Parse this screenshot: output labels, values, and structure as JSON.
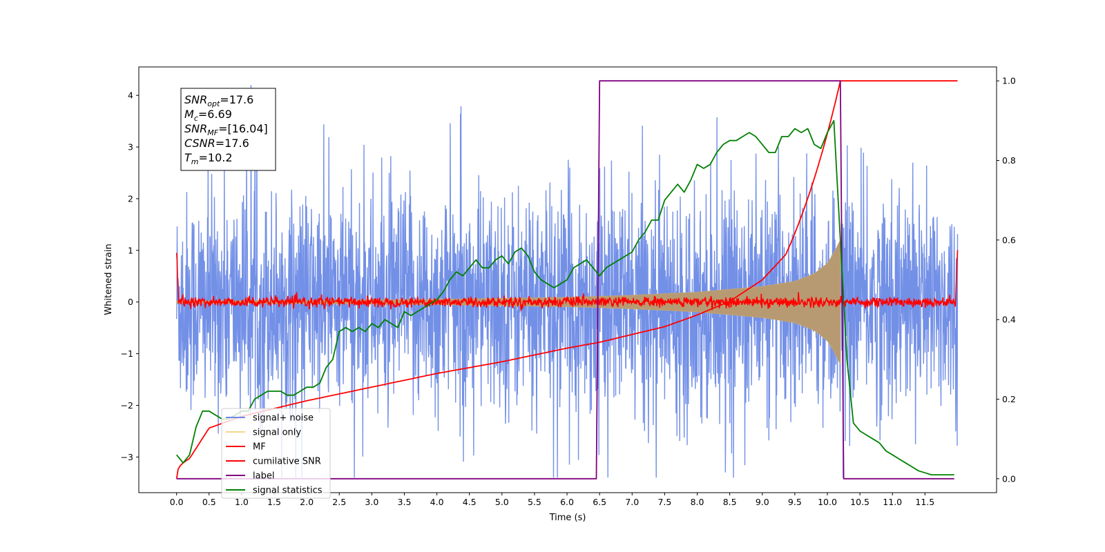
{
  "chart_data": {
    "type": "line",
    "xlabel": "Time (s)",
    "ylabel": "Whitened strain",
    "x_ticks": [
      "0.0",
      "0.5",
      "1.0",
      "1.5",
      "2.0",
      "2.5",
      "3.0",
      "3.5",
      "4.0",
      "4.5",
      "5.0",
      "5.5",
      "6.0",
      "6.5",
      "7.0",
      "7.5",
      "8.0",
      "8.5",
      "9.0",
      "9.5",
      "10.0",
      "10.5",
      "11.0",
      "11.5"
    ],
    "y_left_ticks": [
      "4",
      "3",
      "2",
      "1",
      "0",
      "−1",
      "−2",
      "−3"
    ],
    "y_right_ticks": [
      "1.0",
      "0.8",
      "0.6",
      "0.4",
      "0.2",
      "0.0"
    ],
    "xlim": [
      -0.58,
      12.6
    ],
    "ylim_left": [
      -3.69,
      4.55
    ],
    "ylim_right": [
      -0.035,
      1.035
    ],
    "annotation": [
      {
        "name": "SNR",
        "sub": "opt",
        "value": "=17.6"
      },
      {
        "name": "M",
        "sub": "c",
        "value": "=6.69"
      },
      {
        "name": "SNR",
        "sub": "MF",
        "value": "=[16.04]"
      },
      {
        "name": "CSNR",
        "sub": "",
        "value": "=17.6"
      },
      {
        "name": "T",
        "sub": "m",
        "value": "=10.2"
      }
    ],
    "series": [
      {
        "name": "signal+ noise",
        "color": "#6b8ae6",
        "axis": "left",
        "noise_range": [
          -3.4,
          4.2
        ],
        "typical_abs": 2.4
      },
      {
        "name": "signal only",
        "color": "#f5c45a",
        "axis": "left",
        "envelope_points": [
          [
            0.0,
            0.02
          ],
          [
            2.0,
            0.03
          ],
          [
            4.0,
            0.05
          ],
          [
            6.0,
            0.09
          ],
          [
            7.0,
            0.13
          ],
          [
            8.0,
            0.19
          ],
          [
            9.0,
            0.3
          ],
          [
            9.5,
            0.4
          ],
          [
            9.8,
            0.55
          ],
          [
            10.0,
            0.75
          ],
          [
            10.1,
            0.95
          ],
          [
            10.2,
            1.2
          ]
        ]
      },
      {
        "name": "MF",
        "color": "#ff0000",
        "axis": "left",
        "noise_std": 0.05,
        "edge_value": 1.0
      },
      {
        "name": "cumilative SNR",
        "color": "#ff0000",
        "axis": "right",
        "points": [
          [
            0.0,
            0.0
          ],
          [
            0.5,
            0.13
          ],
          [
            1.0,
            0.16
          ],
          [
            2.0,
            0.2
          ],
          [
            3.0,
            0.235
          ],
          [
            4.0,
            0.27
          ],
          [
            5.0,
            0.3
          ],
          [
            6.0,
            0.335
          ],
          [
            6.5,
            0.35
          ],
          [
            7.0,
            0.37
          ],
          [
            7.5,
            0.39
          ],
          [
            8.0,
            0.42
          ],
          [
            8.5,
            0.455
          ],
          [
            9.0,
            0.51
          ],
          [
            9.5,
            0.6
          ],
          [
            9.8,
            0.7
          ],
          [
            10.0,
            0.8
          ],
          [
            10.1,
            0.88
          ],
          [
            10.2,
            1.0
          ],
          [
            12.0,
            1.0
          ]
        ]
      },
      {
        "name": "label",
        "color": "#800080",
        "axis": "right",
        "points": [
          [
            0.0,
            0.0
          ],
          [
            6.45,
            0.0
          ],
          [
            6.5,
            1.0
          ],
          [
            10.2,
            1.0
          ],
          [
            10.25,
            0.0
          ],
          [
            11.95,
            0.0
          ]
        ]
      },
      {
        "name": "signal statistics",
        "color": "#008000",
        "axis": "right",
        "points": [
          [
            0.0,
            0.06
          ],
          [
            0.1,
            0.04
          ],
          [
            0.2,
            0.06
          ],
          [
            0.3,
            0.13
          ],
          [
            0.4,
            0.17
          ],
          [
            0.5,
            0.17
          ],
          [
            0.6,
            0.16
          ],
          [
            0.7,
            0.15
          ],
          [
            0.8,
            0.15
          ],
          [
            0.9,
            0.16
          ],
          [
            1.0,
            0.17
          ],
          [
            1.1,
            0.17
          ],
          [
            1.2,
            0.2
          ],
          [
            1.3,
            0.21
          ],
          [
            1.4,
            0.22
          ],
          [
            1.5,
            0.22
          ],
          [
            1.6,
            0.22
          ],
          [
            1.7,
            0.21
          ],
          [
            1.8,
            0.21
          ],
          [
            1.9,
            0.22
          ],
          [
            2.0,
            0.23
          ],
          [
            2.1,
            0.23
          ],
          [
            2.2,
            0.24
          ],
          [
            2.3,
            0.28
          ],
          [
            2.4,
            0.3
          ],
          [
            2.5,
            0.37
          ],
          [
            2.6,
            0.38
          ],
          [
            2.7,
            0.37
          ],
          [
            2.8,
            0.38
          ],
          [
            2.9,
            0.37
          ],
          [
            3.0,
            0.39
          ],
          [
            3.1,
            0.38
          ],
          [
            3.2,
            0.4
          ],
          [
            3.3,
            0.39
          ],
          [
            3.4,
            0.38
          ],
          [
            3.5,
            0.42
          ],
          [
            3.6,
            0.41
          ],
          [
            3.7,
            0.42
          ],
          [
            3.8,
            0.43
          ],
          [
            3.9,
            0.44
          ],
          [
            4.0,
            0.45
          ],
          [
            4.1,
            0.47
          ],
          [
            4.2,
            0.5
          ],
          [
            4.3,
            0.52
          ],
          [
            4.4,
            0.51
          ],
          [
            4.5,
            0.53
          ],
          [
            4.6,
            0.55
          ],
          [
            4.7,
            0.53
          ],
          [
            4.8,
            0.53
          ],
          [
            4.9,
            0.55
          ],
          [
            5.0,
            0.56
          ],
          [
            5.1,
            0.54
          ],
          [
            5.2,
            0.57
          ],
          [
            5.3,
            0.58
          ],
          [
            5.4,
            0.56
          ],
          [
            5.5,
            0.52
          ],
          [
            5.6,
            0.5
          ],
          [
            5.7,
            0.49
          ],
          [
            5.8,
            0.48
          ],
          [
            5.9,
            0.49
          ],
          [
            6.0,
            0.5
          ],
          [
            6.1,
            0.53
          ],
          [
            6.2,
            0.54
          ],
          [
            6.3,
            0.55
          ],
          [
            6.4,
            0.53
          ],
          [
            6.5,
            0.51
          ],
          [
            6.6,
            0.53
          ],
          [
            6.7,
            0.54
          ],
          [
            6.8,
            0.55
          ],
          [
            6.9,
            0.56
          ],
          [
            7.0,
            0.57
          ],
          [
            7.1,
            0.6
          ],
          [
            7.2,
            0.62
          ],
          [
            7.3,
            0.65
          ],
          [
            7.4,
            0.65
          ],
          [
            7.5,
            0.7
          ],
          [
            7.6,
            0.72
          ],
          [
            7.7,
            0.74
          ],
          [
            7.8,
            0.72
          ],
          [
            7.9,
            0.75
          ],
          [
            8.0,
            0.79
          ],
          [
            8.1,
            0.78
          ],
          [
            8.2,
            0.79
          ],
          [
            8.3,
            0.82
          ],
          [
            8.4,
            0.84
          ],
          [
            8.5,
            0.85
          ],
          [
            8.6,
            0.85
          ],
          [
            8.7,
            0.86
          ],
          [
            8.8,
            0.87
          ],
          [
            8.9,
            0.86
          ],
          [
            9.0,
            0.84
          ],
          [
            9.1,
            0.82
          ],
          [
            9.2,
            0.82
          ],
          [
            9.3,
            0.86
          ],
          [
            9.4,
            0.86
          ],
          [
            9.5,
            0.88
          ],
          [
            9.6,
            0.87
          ],
          [
            9.7,
            0.88
          ],
          [
            9.8,
            0.84
          ],
          [
            9.9,
            0.83
          ],
          [
            10.0,
            0.87
          ],
          [
            10.1,
            0.9
          ],
          [
            10.2,
            0.6
          ],
          [
            10.3,
            0.3
          ],
          [
            10.4,
            0.14
          ],
          [
            10.5,
            0.12
          ],
          [
            10.6,
            0.11
          ],
          [
            10.7,
            0.1
          ],
          [
            10.8,
            0.09
          ],
          [
            10.9,
            0.07
          ],
          [
            11.0,
            0.06
          ],
          [
            11.1,
            0.05
          ],
          [
            11.2,
            0.04
          ],
          [
            11.3,
            0.03
          ],
          [
            11.4,
            0.02
          ],
          [
            11.5,
            0.015
          ],
          [
            11.6,
            0.01
          ],
          [
            11.7,
            0.01
          ],
          [
            11.95,
            0.01
          ]
        ]
      }
    ],
    "legend_position": "lower-left",
    "grid": false
  }
}
